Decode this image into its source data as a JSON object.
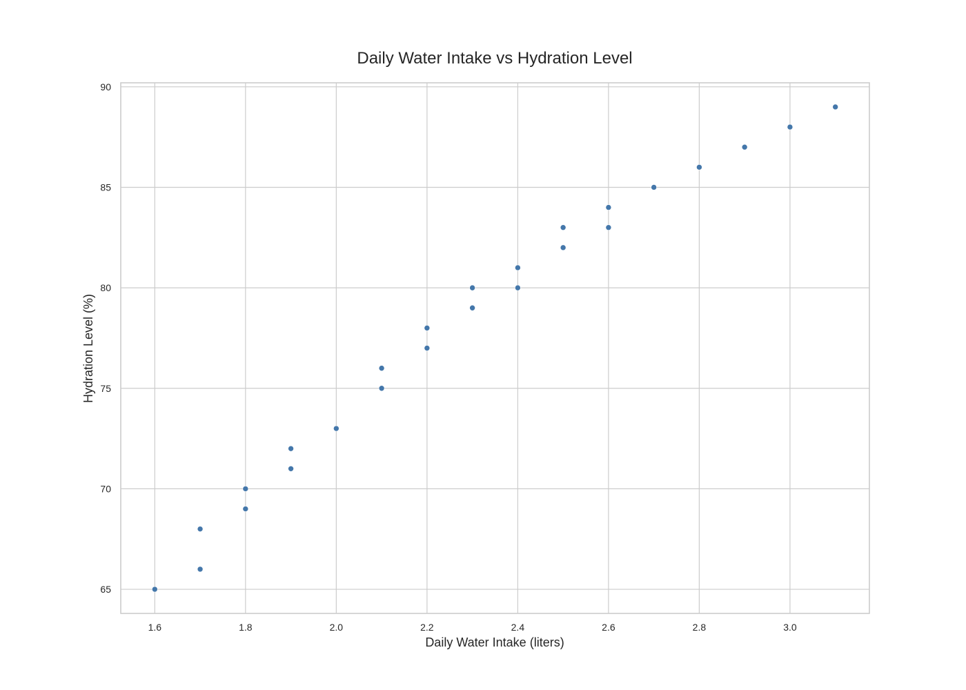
{
  "chart_data": {
    "type": "scatter",
    "title": "Daily Water Intake vs Hydration Level",
    "xlabel": "Daily Water Intake (liters)",
    "ylabel": "Hydration Level (%)",
    "xlim": [
      1.525,
      3.175
    ],
    "ylim": [
      63.8,
      90.2
    ],
    "xticks": [
      1.6,
      1.8,
      2.0,
      2.2,
      2.4,
      2.6,
      2.8,
      3.0
    ],
    "xtick_labels": [
      "1.6",
      "1.8",
      "2.0",
      "2.2",
      "2.4",
      "2.6",
      "2.8",
      "3.0"
    ],
    "yticks": [
      65,
      70,
      75,
      80,
      85,
      90
    ],
    "ytick_labels": [
      "65",
      "70",
      "75",
      "80",
      "85",
      "90"
    ],
    "grid": true,
    "marker_color": "#4477aa",
    "series": [
      {
        "x": [
          1.6,
          1.7,
          1.7,
          1.8,
          1.8,
          1.9,
          1.9,
          2.0,
          2.1,
          2.1,
          2.2,
          2.2,
          2.3,
          2.3,
          2.4,
          2.4,
          2.5,
          2.5,
          2.6,
          2.6,
          2.7,
          2.8,
          2.9,
          3.0,
          3.1
        ],
        "y": [
          65,
          66,
          68,
          69,
          70,
          71,
          72,
          73,
          75,
          76,
          77,
          78,
          79,
          80,
          80,
          81,
          82,
          83,
          83,
          84,
          85,
          86,
          87,
          88,
          89
        ]
      }
    ]
  }
}
